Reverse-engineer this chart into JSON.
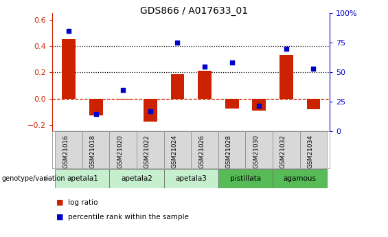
{
  "title": "GDS866 / A017633_01",
  "samples": [
    "GSM21016",
    "GSM21018",
    "GSM21020",
    "GSM21022",
    "GSM21024",
    "GSM21026",
    "GSM21028",
    "GSM21030",
    "GSM21032",
    "GSM21034"
  ],
  "log_ratio": [
    0.45,
    -0.13,
    -0.01,
    -0.175,
    0.185,
    0.21,
    -0.075,
    -0.09,
    0.33,
    -0.08
  ],
  "percentile_rank_pct": [
    85,
    15,
    35,
    17,
    75,
    55,
    58,
    22,
    70,
    53
  ],
  "groups": [
    {
      "label": "apetala1",
      "start": 0,
      "end": 2,
      "color": "#c6efce"
    },
    {
      "label": "apetala2",
      "start": 2,
      "end": 4,
      "color": "#c6efce"
    },
    {
      "label": "apetala3",
      "start": 4,
      "end": 6,
      "color": "#c6efce"
    },
    {
      "label": "pistillata",
      "start": 6,
      "end": 8,
      "color": "#57bb57"
    },
    {
      "label": "agamous",
      "start": 8,
      "end": 10,
      "color": "#57bb57"
    }
  ],
  "ylim_left": [
    -0.25,
    0.65
  ],
  "ylim_right": [
    0,
    100
  ],
  "yticks_left": [
    -0.2,
    0.0,
    0.2,
    0.4,
    0.6
  ],
  "yticks_right": [
    0,
    25,
    50,
    75,
    100
  ],
  "bar_color_red": "#cc2200",
  "bar_color_blue": "#0000cc",
  "dotted_line_values": [
    0.2,
    0.4
  ],
  "dashed_line_value": 0.0,
  "bar_width": 0.5,
  "figsize": [
    5.65,
    3.45
  ],
  "dpi": 100
}
